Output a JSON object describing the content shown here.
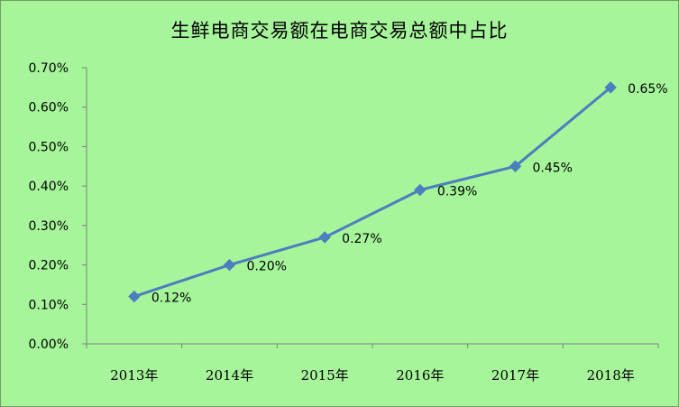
{
  "chart_data": {
    "type": "line",
    "title": "生鲜电商交易额在电商交易总额中占比",
    "categories": [
      "2013年",
      "2014年",
      "2015年",
      "2016年",
      "2017年",
      "2018年"
    ],
    "series": [
      {
        "values": [
          0.12,
          0.2,
          0.27,
          0.39,
          0.45,
          0.65
        ],
        "data_labels": [
          "0.12%",
          "0.20%",
          "0.27%",
          "0.39%",
          "0.45%",
          "0.65%"
        ],
        "color": "#4a7ebf",
        "marker": "diamond"
      }
    ],
    "ylim": [
      0,
      0.7
    ],
    "yticks": [
      0,
      0.1,
      0.2,
      0.3,
      0.4,
      0.5,
      0.6,
      0.7
    ],
    "ytick_labels": [
      "0.00%",
      "0.10%",
      "0.20%",
      "0.30%",
      "0.40%",
      "0.50%",
      "0.60%",
      "0.70%"
    ],
    "grid": false,
    "legend": "none",
    "background_color": "#a6f59a"
  }
}
